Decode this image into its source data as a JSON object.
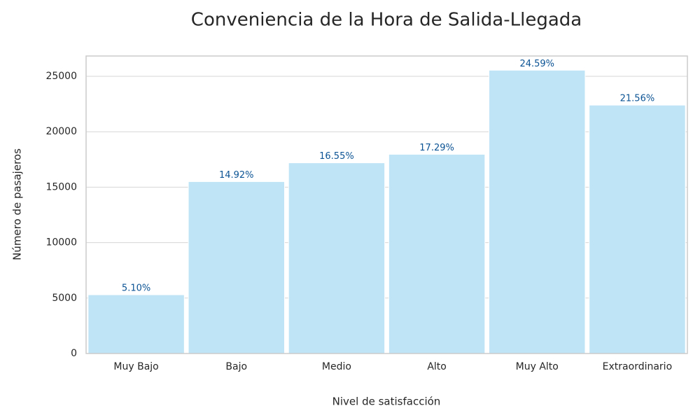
{
  "chart_data": {
    "type": "bar",
    "title": "Conveniencia de la Hora de Salida-Llegada",
    "x_label": "Nivel de satisfacción",
    "y_label": "Número de pasajeros",
    "categories": [
      "Muy Bajo",
      "Bajo",
      "Medio",
      "Alto",
      "Muy Alto",
      "Extraordinario"
    ],
    "values": [
      5299,
      15503,
      17196,
      17965,
      25550,
      22402
    ],
    "value_labels": [
      "5.10%",
      "14.92%",
      "16.55%",
      "17.29%",
      "24.59%",
      "21.56%"
    ],
    "color": "#bee4f5",
    "label_color": "#0b5394",
    "ylim": [
      0,
      26830
    ],
    "yticks": [
      0,
      5000,
      10000,
      15000,
      20000,
      25000
    ],
    "grid": true
  }
}
